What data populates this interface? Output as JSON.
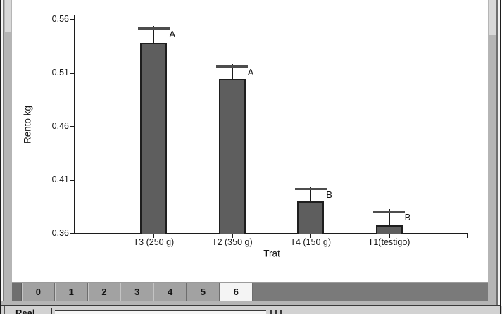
{
  "chart_data": {
    "type": "bar",
    "categories": [
      "T3 (250 g)",
      "T2 (350 g)",
      "T4 (150 g)",
      "T1(testigo)"
    ],
    "values": [
      0.538,
      0.505,
      0.39,
      0.368
    ],
    "errors_plus": [
      0.015,
      0.012,
      0.013,
      0.014
    ],
    "sig_letters": [
      "A",
      "A",
      "B",
      "B"
    ],
    "title": "",
    "xlabel": "Trat",
    "ylabel": "Rento kg",
    "ylim": [
      0.36,
      0.56
    ],
    "yticks": [
      "0.56",
      "0.51",
      "0.46",
      "0.41",
      "0.36"
    ],
    "grid": false,
    "legend": false,
    "bar_color": "#5e5e5e"
  },
  "tabbar": {
    "tabs": [
      "0",
      "1",
      "2",
      "3",
      "4",
      "5",
      "6"
    ],
    "selected": "6"
  },
  "statusbar": {
    "label": "Real"
  }
}
